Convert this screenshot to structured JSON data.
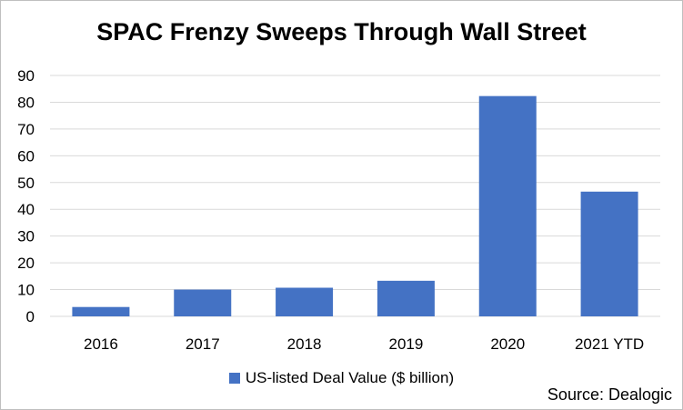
{
  "chart_data": {
    "type": "bar",
    "title": "SPAC Frenzy Sweeps Through Wall Street",
    "categories": [
      "2016",
      "2017",
      "2018",
      "2019",
      "2020",
      "2021 YTD"
    ],
    "series": [
      {
        "name": "US-listed Deal Value ($ billion)",
        "values": [
          3.5,
          10,
          10.7,
          13.3,
          82.3,
          46.6
        ]
      }
    ],
    "ylim": [
      0,
      90
    ],
    "yticks": [
      0,
      10,
      20,
      30,
      40,
      50,
      60,
      70,
      80,
      90
    ],
    "grid": true,
    "legend": "bottom",
    "bar_color": "#4472c4",
    "grid_color": "#d9d9d9",
    "source": "Source: Dealogic"
  }
}
